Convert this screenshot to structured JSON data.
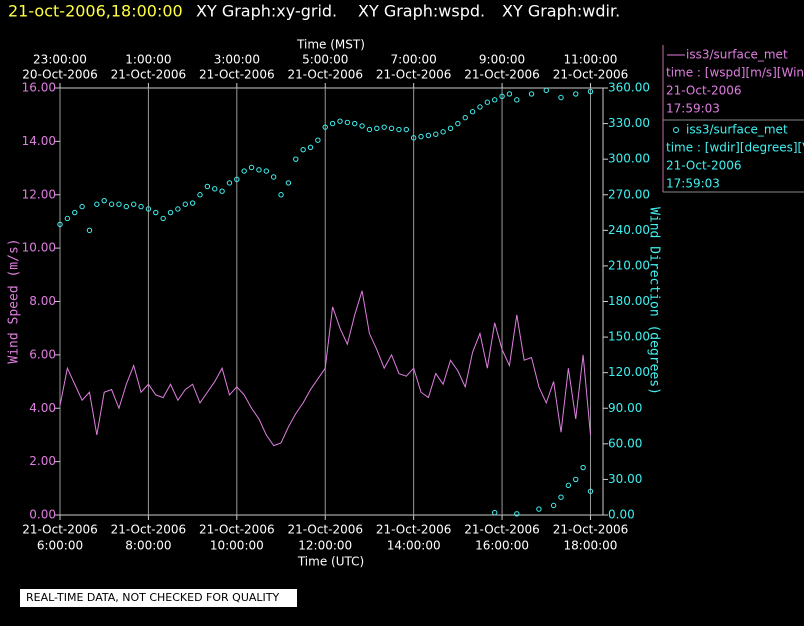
{
  "header": {
    "timestamp": "21-oct-2006,18:00:00",
    "graphs": [
      "XY Graph:xy-grid.",
      "XY Graph:wspd.",
      "XY Graph:wdir."
    ]
  },
  "footer": {
    "disclaimer": "REAL-TIME DATA, NOT CHECKED FOR QUALITY"
  },
  "chart_data": {
    "type": "line-scatter",
    "xlabel": "Time (UTC)",
    "x2label": "Time (MST)",
    "ylabel": "Wind Speed (m/s)",
    "y2label": "Wind Direction (degrees)",
    "grid": true,
    "xlim": [
      "2006-10-21T06:00",
      "2006-10-21T18:17"
    ],
    "xticks": [
      {
        "value": "2006-10-21T06:00",
        "label": [
          "21-Oct-2006",
          "6:00:00"
        ]
      },
      {
        "value": "2006-10-21T08:00",
        "label": [
          "21-Oct-2006",
          "8:00:00"
        ]
      },
      {
        "value": "2006-10-21T10:00",
        "label": [
          "21-Oct-2006",
          "10:00:00"
        ]
      },
      {
        "value": "2006-10-21T12:00",
        "label": [
          "21-Oct-2006",
          "12:00:00"
        ]
      },
      {
        "value": "2006-10-21T14:00",
        "label": [
          "21-Oct-2006",
          "14:00:00"
        ]
      },
      {
        "value": "2006-10-21T16:00",
        "label": [
          "21-Oct-2006",
          "16:00:00"
        ]
      },
      {
        "value": "2006-10-21T18:00",
        "label": [
          "21-Oct-2006",
          "18:00:00"
        ]
      }
    ],
    "x2ticks": [
      {
        "value": "2006-10-21T06:00",
        "label": [
          "23:00:00",
          "20-Oct-2006"
        ]
      },
      {
        "value": "2006-10-21T08:00",
        "label": [
          "1:00:00",
          "21-Oct-2006"
        ]
      },
      {
        "value": "2006-10-21T10:00",
        "label": [
          "3:00:00",
          "21-Oct-2006"
        ]
      },
      {
        "value": "2006-10-21T12:00",
        "label": [
          "5:00:00",
          "21-Oct-2006"
        ]
      },
      {
        "value": "2006-10-21T14:00",
        "label": [
          "7:00:00",
          "21-Oct-2006"
        ]
      },
      {
        "value": "2006-10-21T16:00",
        "label": [
          "9:00:00",
          "21-Oct-2006"
        ]
      },
      {
        "value": "2006-10-21T18:00",
        "label": [
          "11:00:00",
          "21-Oct-2006"
        ]
      }
    ],
    "ylim": [
      0,
      16
    ],
    "yticks": [
      {
        "value": 0,
        "label": "0.00"
      },
      {
        "value": 2,
        "label": "2.00"
      },
      {
        "value": 4,
        "label": "4.00"
      },
      {
        "value": 6,
        "label": "6.00"
      },
      {
        "value": 8,
        "label": "8.00"
      },
      {
        "value": 10,
        "label": "10.00"
      },
      {
        "value": 12,
        "label": "12.00"
      },
      {
        "value": 14,
        "label": "14.00"
      },
      {
        "value": 16,
        "label": "16.00"
      }
    ],
    "y2lim": [
      0,
      360
    ],
    "y2ticks": [
      {
        "value": 0,
        "label": "0.00"
      },
      {
        "value": 30,
        "label": "30.00"
      },
      {
        "value": 60,
        "label": "60.00"
      },
      {
        "value": 90,
        "label": "90.00"
      },
      {
        "value": 120,
        "label": "120.00"
      },
      {
        "value": 150,
        "label": "150.00"
      },
      {
        "value": 180,
        "label": "180.00"
      },
      {
        "value": 210,
        "label": "210.00"
      },
      {
        "value": 240,
        "label": "240.00"
      },
      {
        "value": 270,
        "label": "270.00"
      },
      {
        "value": 300,
        "label": "300.00"
      },
      {
        "value": 330,
        "label": "330.00"
      },
      {
        "value": 360,
        "label": "360.00"
      }
    ],
    "series": [
      {
        "name": "iss3/surface_met",
        "kind": "line",
        "axis": "y",
        "color": "#e07ee0",
        "info": [
          "time : [wspd][m/s][Win",
          "21-Oct-2006",
          "17:59:03"
        ],
        "x": [
          "2006-10-21T06:00",
          "2006-10-21T06:10",
          "2006-10-21T06:20",
          "2006-10-21T06:30",
          "2006-10-21T06:40",
          "2006-10-21T06:50",
          "2006-10-21T07:00",
          "2006-10-21T07:10",
          "2006-10-21T07:20",
          "2006-10-21T07:30",
          "2006-10-21T07:40",
          "2006-10-21T07:50",
          "2006-10-21T08:00",
          "2006-10-21T08:10",
          "2006-10-21T08:20",
          "2006-10-21T08:30",
          "2006-10-21T08:40",
          "2006-10-21T08:50",
          "2006-10-21T09:00",
          "2006-10-21T09:10",
          "2006-10-21T09:20",
          "2006-10-21T09:30",
          "2006-10-21T09:40",
          "2006-10-21T09:50",
          "2006-10-21T10:00",
          "2006-10-21T10:10",
          "2006-10-21T10:20",
          "2006-10-21T10:30",
          "2006-10-21T10:40",
          "2006-10-21T10:50",
          "2006-10-21T11:00",
          "2006-10-21T11:10",
          "2006-10-21T11:20",
          "2006-10-21T11:30",
          "2006-10-21T11:40",
          "2006-10-21T11:50",
          "2006-10-21T12:00",
          "2006-10-21T12:10",
          "2006-10-21T12:20",
          "2006-10-21T12:30",
          "2006-10-21T12:40",
          "2006-10-21T12:50",
          "2006-10-21T13:00",
          "2006-10-21T13:10",
          "2006-10-21T13:20",
          "2006-10-21T13:30",
          "2006-10-21T13:40",
          "2006-10-21T13:50",
          "2006-10-21T14:00",
          "2006-10-21T14:10",
          "2006-10-21T14:20",
          "2006-10-21T14:30",
          "2006-10-21T14:40",
          "2006-10-21T14:50",
          "2006-10-21T15:00",
          "2006-10-21T15:10",
          "2006-10-21T15:20",
          "2006-10-21T15:30",
          "2006-10-21T15:40",
          "2006-10-21T15:50",
          "2006-10-21T16:00",
          "2006-10-21T16:10",
          "2006-10-21T16:20",
          "2006-10-21T16:30",
          "2006-10-21T16:40",
          "2006-10-21T16:50",
          "2006-10-21T17:00",
          "2006-10-21T17:10",
          "2006-10-21T17:20",
          "2006-10-21T17:30",
          "2006-10-21T17:40",
          "2006-10-21T17:50",
          "2006-10-21T18:00"
        ],
        "values": [
          4.1,
          5.5,
          4.9,
          4.3,
          4.6,
          3.0,
          4.6,
          4.7,
          4.0,
          4.9,
          5.6,
          4.6,
          4.9,
          4.5,
          4.4,
          4.9,
          4.3,
          4.7,
          4.9,
          4.2,
          4.6,
          5.0,
          5.5,
          4.5,
          4.8,
          4.5,
          4.0,
          3.6,
          3.0,
          2.6,
          2.7,
          3.3,
          3.8,
          4.2,
          4.7,
          5.1,
          5.5,
          7.8,
          7.0,
          6.4,
          7.5,
          8.4,
          6.8,
          6.2,
          5.5,
          6.0,
          5.3,
          5.2,
          5.5,
          4.6,
          4.4,
          5.3,
          4.9,
          5.8,
          5.4,
          4.8,
          6.1,
          6.8,
          5.5,
          7.2,
          6.2,
          5.6,
          7.5,
          5.8,
          5.9,
          4.8,
          4.2,
          5.0,
          3.1,
          5.5,
          3.6,
          6.0,
          3.0
        ]
      },
      {
        "name": "iss3/surface_met",
        "kind": "scatter",
        "axis": "y2",
        "color": "#40f0f0",
        "info": [
          "time : [wdir][degrees][V",
          "21-Oct-2006",
          "17:59:03"
        ],
        "x": [
          "2006-10-21T06:00",
          "2006-10-21T06:10",
          "2006-10-21T06:20",
          "2006-10-21T06:30",
          "2006-10-21T06:40",
          "2006-10-21T06:50",
          "2006-10-21T07:00",
          "2006-10-21T07:10",
          "2006-10-21T07:20",
          "2006-10-21T07:30",
          "2006-10-21T07:40",
          "2006-10-21T07:50",
          "2006-10-21T08:00",
          "2006-10-21T08:10",
          "2006-10-21T08:20",
          "2006-10-21T08:30",
          "2006-10-21T08:40",
          "2006-10-21T08:50",
          "2006-10-21T09:00",
          "2006-10-21T09:10",
          "2006-10-21T09:20",
          "2006-10-21T09:30",
          "2006-10-21T09:40",
          "2006-10-21T09:50",
          "2006-10-21T10:00",
          "2006-10-21T10:10",
          "2006-10-21T10:20",
          "2006-10-21T10:30",
          "2006-10-21T10:40",
          "2006-10-21T10:50",
          "2006-10-21T11:00",
          "2006-10-21T11:10",
          "2006-10-21T11:20",
          "2006-10-21T11:30",
          "2006-10-21T11:40",
          "2006-10-21T11:50",
          "2006-10-21T12:00",
          "2006-10-21T12:10",
          "2006-10-21T12:20",
          "2006-10-21T12:30",
          "2006-10-21T12:40",
          "2006-10-21T12:50",
          "2006-10-21T13:00",
          "2006-10-21T13:10",
          "2006-10-21T13:20",
          "2006-10-21T13:30",
          "2006-10-21T13:40",
          "2006-10-21T13:50",
          "2006-10-21T14:00",
          "2006-10-21T14:10",
          "2006-10-21T14:20",
          "2006-10-21T14:30",
          "2006-10-21T14:40",
          "2006-10-21T14:50",
          "2006-10-21T15:00",
          "2006-10-21T15:10",
          "2006-10-21T15:20",
          "2006-10-21T15:30",
          "2006-10-21T15:40",
          "2006-10-21T15:50",
          "2006-10-21T16:00",
          "2006-10-21T16:10",
          "2006-10-21T16:20",
          "2006-10-21T16:40",
          "2006-10-21T17:00",
          "2006-10-21T17:20",
          "2006-10-21T17:40",
          "2006-10-21T18:00",
          "2006-10-21T15:50",
          "2006-10-21T16:20",
          "2006-10-21T16:50",
          "2006-10-21T17:10",
          "2006-10-21T17:20",
          "2006-10-21T17:30",
          "2006-10-21T17:40",
          "2006-10-21T17:50",
          "2006-10-21T18:00"
        ],
        "values": [
          245,
          250,
          255,
          260,
          240,
          262,
          265,
          262,
          262,
          260,
          262,
          260,
          258,
          255,
          250,
          255,
          258,
          262,
          263,
          270,
          277,
          275,
          273,
          280,
          283,
          290,
          293,
          291,
          290,
          285,
          270,
          280,
          300,
          308,
          310,
          316,
          327,
          330,
          332,
          331,
          330,
          328,
          325,
          326,
          327,
          326,
          325,
          325,
          318,
          319,
          320,
          321,
          323,
          326,
          330,
          335,
          340,
          344,
          348,
          350,
          353,
          355,
          350,
          355,
          358,
          352,
          355,
          357,
          2,
          1,
          5,
          8,
          15,
          25,
          30,
          40,
          20
        ]
      }
    ]
  }
}
